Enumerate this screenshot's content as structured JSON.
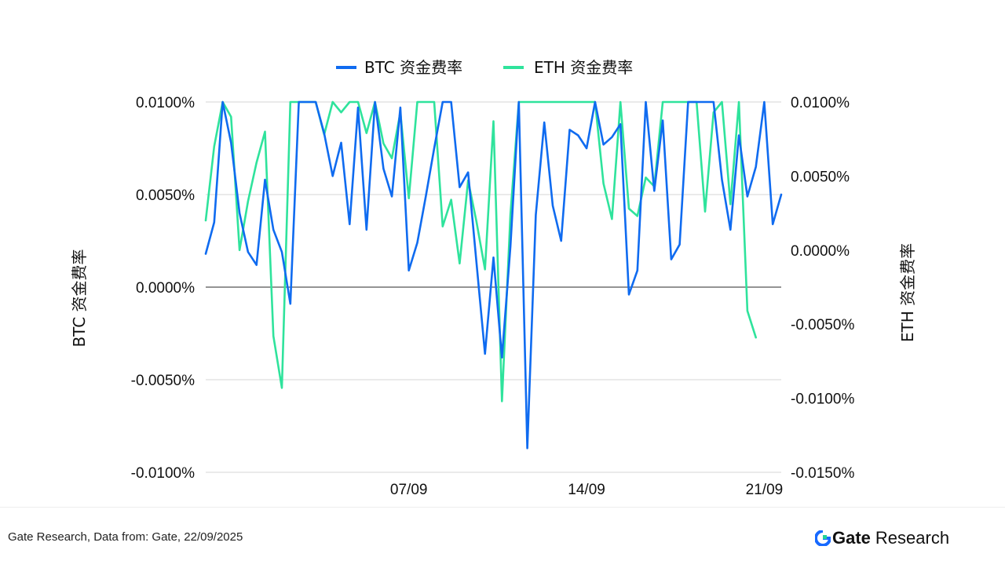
{
  "chart_data": {
    "type": "line",
    "legend": {
      "position": "top-center"
    },
    "xaxis": {
      "ticks": [
        {
          "index": 24,
          "label": "07/09"
        },
        {
          "index": 45,
          "label": "14/09"
        },
        {
          "index": 66,
          "label": "21/09"
        }
      ]
    },
    "left_axis": {
      "title": "BTC 资金费率",
      "ticks": [
        "0.0100%",
        "0.0050%",
        "0.0000%",
        "-0.0050%",
        "-0.0100%"
      ],
      "range": [
        -0.01,
        0.01
      ]
    },
    "right_axis": {
      "title": "ETH 资金费率",
      "ticks": [
        "0.0100%",
        "0.0050%",
        "0.0000%",
        "-0.0050%",
        "-0.0100%",
        "-0.0150%"
      ],
      "range": [
        -0.015,
        0.01
      ]
    },
    "grid": true,
    "series": [
      {
        "name": "BTC 资金费率",
        "axis": "left",
        "color": "#0f6bf0",
        "values": [
          0.0018,
          0.0035,
          0.01,
          0.0078,
          0.004,
          0.0019,
          0.0012,
          0.0058,
          0.0031,
          0.0019,
          -0.0009,
          0.01,
          0.01,
          0.01,
          0.0083,
          0.006,
          0.0078,
          0.0034,
          0.0097,
          0.0031,
          0.01,
          0.0064,
          0.0049,
          0.0097,
          0.0009,
          0.0024,
          0.0049,
          0.0075,
          0.01,
          0.01,
          0.0054,
          0.0062,
          0.0013,
          -0.0036,
          0.0016,
          -0.0038,
          0.0022,
          0.01,
          -0.0087,
          0.0039,
          0.0089,
          0.0044,
          0.0025,
          0.0085,
          0.0082,
          0.0075,
          0.01,
          0.0077,
          0.0081,
          0.0088,
          -0.0004,
          0.0009,
          0.01,
          0.0052,
          0.009,
          0.0015,
          0.0023,
          0.01,
          0.01,
          0.01,
          0.01,
          0.0058,
          0.0031,
          0.0082,
          0.0049,
          0.0065,
          0.01,
          0.0034,
          0.005
        ]
      },
      {
        "name": "ETH 资金费率",
        "axis": "right",
        "color": "#2fe39c",
        "values": [
          0.002,
          0.007,
          0.01,
          0.009,
          0.0,
          0.0033,
          0.0059,
          0.008,
          -0.0058,
          -0.0093,
          0.01,
          0.01,
          0.01,
          0.01,
          0.0078,
          0.01,
          0.0093,
          0.01,
          0.01,
          0.0079,
          0.01,
          0.0072,
          0.0062,
          0.0093,
          0.0035,
          0.01,
          0.01,
          0.01,
          0.0016,
          0.0034,
          -0.0009,
          0.0047,
          0.0019,
          -0.0013,
          0.0087,
          -0.0102,
          0.0024,
          0.01,
          0.01,
          0.01,
          0.01,
          0.01,
          0.01,
          0.01,
          0.01,
          0.01,
          0.01,
          0.0045,
          0.0021,
          0.01,
          0.0028,
          0.0023,
          0.0049,
          0.0043,
          0.01,
          0.01,
          0.01,
          0.01,
          0.01,
          0.0026,
          0.0093,
          0.01,
          0.0031,
          0.01,
          -0.0041,
          -0.0059
        ]
      }
    ]
  },
  "footer": {
    "source": "Gate Research, Data from: Gate, 22/09/2025",
    "logo_gate": "Gate",
    "logo_research": "Research"
  }
}
